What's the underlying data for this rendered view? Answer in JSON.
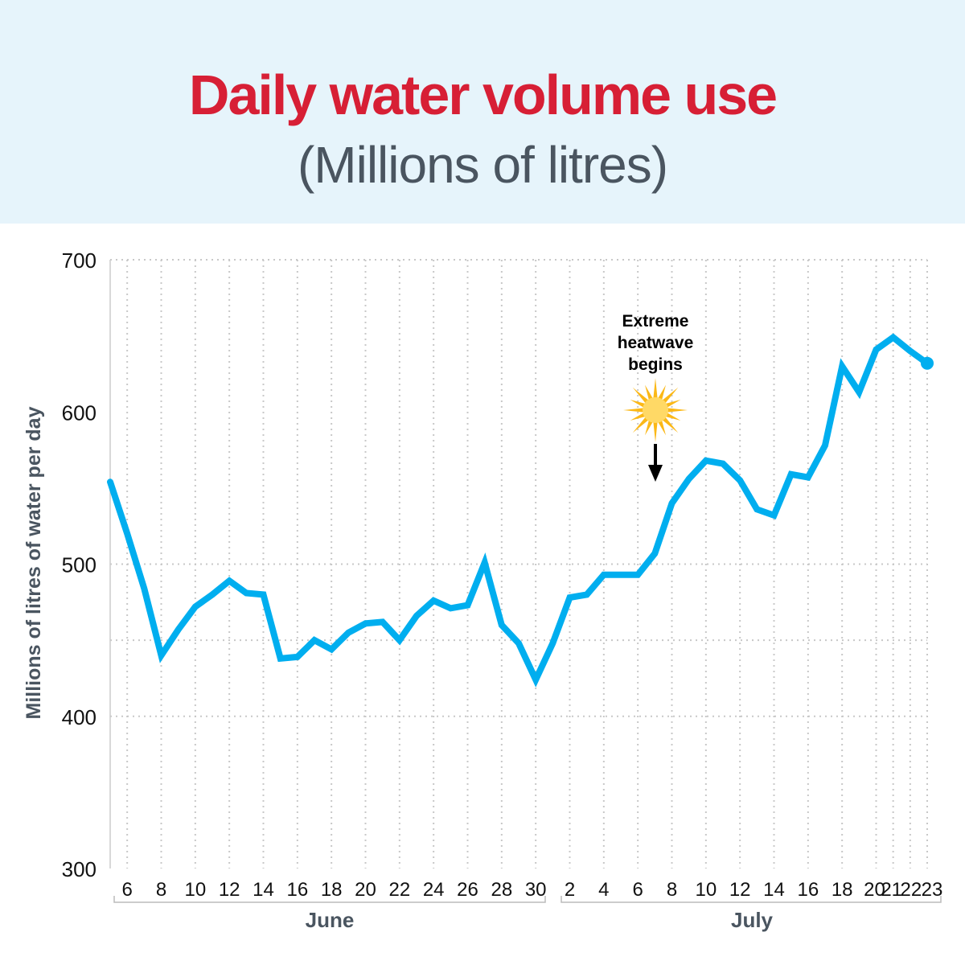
{
  "header": {
    "title": "Daily water volume use",
    "subtitle": "(Millions of litres)"
  },
  "annotation": {
    "lines": [
      "Extreme",
      "heatwave",
      "begins"
    ],
    "icon": "sun-icon",
    "date": "July 7"
  },
  "colors": {
    "title": "#d71f35",
    "subtitle": "#4a5560",
    "line": "#00aeef",
    "header_bg": "#e6f4fb",
    "sun": "#fbb817"
  },
  "chart_data": {
    "type": "line",
    "title": "Daily water volume use",
    "subtitle": "(Millions of litres)",
    "ylabel": "Millions of litres of water per day",
    "xlabel": "",
    "ylim": [
      300,
      700
    ],
    "yticks": [
      300,
      400,
      500,
      600,
      700
    ],
    "grid": true,
    "months": [
      "June",
      "July"
    ],
    "x_tick_labels": [
      "6",
      "8",
      "10",
      "12",
      "14",
      "16",
      "18",
      "20",
      "22",
      "24",
      "26",
      "28",
      "30",
      "2",
      "4",
      "6",
      "8",
      "10",
      "12",
      "14",
      "16",
      "18",
      "20",
      "21",
      "22",
      "23"
    ],
    "x": [
      "June 5",
      "June 6",
      "June 7",
      "June 8",
      "June 9",
      "June 10",
      "June 11",
      "June 12",
      "June 13",
      "June 14",
      "June 15",
      "June 16",
      "June 17",
      "June 18",
      "June 19",
      "June 20",
      "June 21",
      "June 22",
      "June 23",
      "June 24",
      "June 25",
      "June 26",
      "June 27",
      "June 28",
      "June 29",
      "June 30",
      "July 1",
      "July 2",
      "July 3",
      "July 4",
      "July 5",
      "July 6",
      "July 7",
      "July 8",
      "July 9",
      "July 10",
      "July 11",
      "July 12",
      "July 13",
      "July 14",
      "July 15",
      "July 16",
      "July 17",
      "July 18",
      "July 19",
      "July 20",
      "July 21",
      "July 22",
      "July 23"
    ],
    "values": [
      554,
      520,
      484,
      440,
      457,
      472,
      480,
      489,
      481,
      480,
      438,
      439,
      450,
      444,
      455,
      461,
      462,
      450,
      466,
      476,
      471,
      473,
      501,
      460,
      448,
      424,
      448,
      478,
      480,
      493,
      493,
      493,
      507,
      540,
      556,
      568,
      566,
      555,
      536,
      532,
      559,
      557,
      578,
      630,
      613,
      641,
      649,
      640,
      632
    ]
  }
}
